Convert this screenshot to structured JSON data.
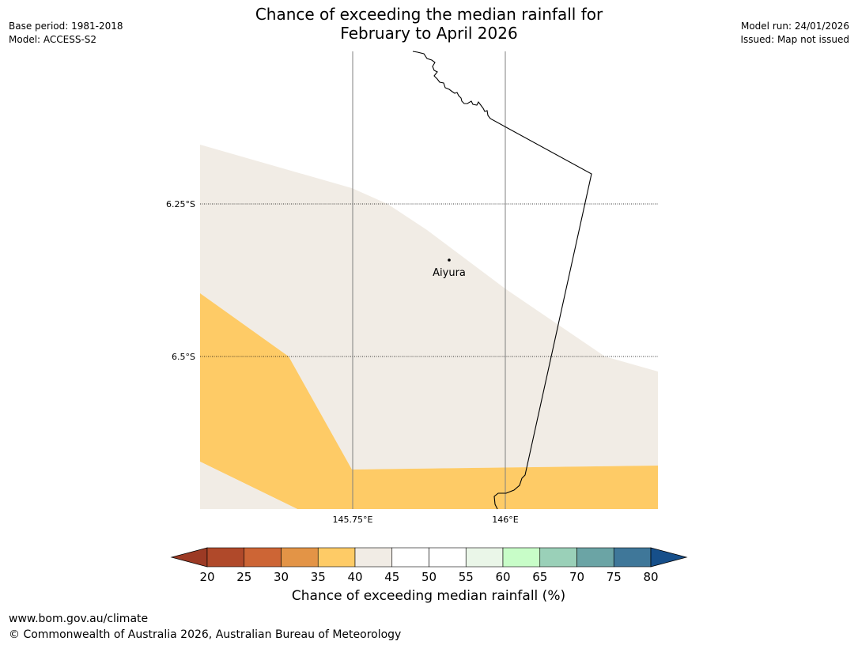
{
  "title": {
    "line1": "Chance of exceeding the median rainfall for",
    "line2": "February to April 2026"
  },
  "meta_left": {
    "base_period": "Base period: 1981-2018",
    "model": "Model: ACCESS-S2"
  },
  "meta_right": {
    "model_run": "Model run: 24/01/2026",
    "issued": "Issued: Map not issued"
  },
  "map": {
    "place_name": "Aiyura",
    "lat_labels": [
      "6.25°S",
      "6.5°S"
    ],
    "lon_labels": [
      "145.75°E",
      "146°E"
    ],
    "colors": {
      "land_band_35_40": "#fecb66",
      "land_band_40_45": "#f1ece5",
      "border": "#000000",
      "gridline": "#808080"
    }
  },
  "colorbar": {
    "label": "Chance of exceeding median rainfall (%)",
    "ticks": [
      "20",
      "25",
      "30",
      "35",
      "40",
      "45",
      "50",
      "55",
      "60",
      "65",
      "70",
      "75",
      "80"
    ],
    "colors": [
      "#b0492a",
      "#cd6535",
      "#e39446",
      "#fecb66",
      "#f1ece5",
      "#ffffff",
      "#ffffff",
      "#eaf6e8",
      "#c8fdc8",
      "#9ad0b8",
      "#6ba4a5",
      "#3f7799"
    ],
    "under_color": "#9c3a24",
    "over_color": "#164f8a"
  },
  "footer": {
    "url": "www.bom.gov.au/climate",
    "copyright": "© Commonwealth of Australia 2026, Australian Bureau of Meteorology"
  }
}
